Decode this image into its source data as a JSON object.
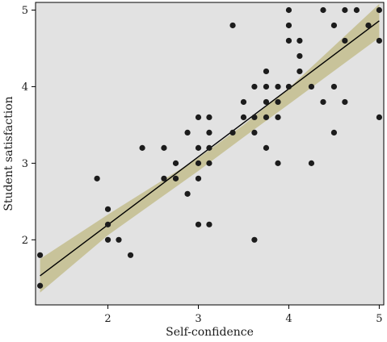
{
  "chart_data": {
    "type": "scatter",
    "title": "",
    "xlabel": "Self-confidence",
    "ylabel": "Student satisfaction",
    "xlim": [
      1.2,
      5.05
    ],
    "ylim": [
      1.15,
      5.1
    ],
    "xticks": [
      2,
      3,
      4,
      5
    ],
    "yticks": [
      2,
      3,
      4,
      5
    ],
    "grid": false,
    "colors": {
      "panel": "#e2e2e2",
      "points": "#1c1c1c",
      "fit_line": "#000000",
      "confidence_band": "#c8c39a"
    },
    "points": [
      [
        1.25,
        1.8
      ],
      [
        1.25,
        1.4
      ],
      [
        1.88,
        2.8
      ],
      [
        2.0,
        2.4
      ],
      [
        2.0,
        2.2
      ],
      [
        2.0,
        2.0
      ],
      [
        2.12,
        2.0
      ],
      [
        2.25,
        1.8
      ],
      [
        2.38,
        3.2
      ],
      [
        2.62,
        3.2
      ],
      [
        2.62,
        2.8
      ],
      [
        2.75,
        3.0
      ],
      [
        2.75,
        2.8
      ],
      [
        2.88,
        3.4
      ],
      [
        2.88,
        2.6
      ],
      [
        3.0,
        3.6
      ],
      [
        3.0,
        3.2
      ],
      [
        3.0,
        3.0
      ],
      [
        3.0,
        2.8
      ],
      [
        3.0,
        2.2
      ],
      [
        3.12,
        3.6
      ],
      [
        3.12,
        3.4
      ],
      [
        3.12,
        3.2
      ],
      [
        3.12,
        3.0
      ],
      [
        3.12,
        2.2
      ],
      [
        3.38,
        4.8
      ],
      [
        3.38,
        3.4
      ],
      [
        3.5,
        3.8
      ],
      [
        3.5,
        3.6
      ],
      [
        3.62,
        4.0
      ],
      [
        3.62,
        3.6
      ],
      [
        3.62,
        3.4
      ],
      [
        3.62,
        2.0
      ],
      [
        3.75,
        4.2
      ],
      [
        3.75,
        4.0
      ],
      [
        3.75,
        3.8
      ],
      [
        3.75,
        3.6
      ],
      [
        3.75,
        3.2
      ],
      [
        3.88,
        4.0
      ],
      [
        3.88,
        3.8
      ],
      [
        3.88,
        3.6
      ],
      [
        3.88,
        3.0
      ],
      [
        4.0,
        5.0
      ],
      [
        4.0,
        4.8
      ],
      [
        4.0,
        4.6
      ],
      [
        4.0,
        4.0
      ],
      [
        4.12,
        4.6
      ],
      [
        4.12,
        4.4
      ],
      [
        4.12,
        4.2
      ],
      [
        4.25,
        4.0
      ],
      [
        4.25,
        3.0
      ],
      [
        4.38,
        5.0
      ],
      [
        4.38,
        3.8
      ],
      [
        4.5,
        4.8
      ],
      [
        4.5,
        4.0
      ],
      [
        4.5,
        3.4
      ],
      [
        4.62,
        5.0
      ],
      [
        4.62,
        4.6
      ],
      [
        4.62,
        3.8
      ],
      [
        4.75,
        5.0
      ],
      [
        4.88,
        4.8
      ],
      [
        5.0,
        5.0
      ],
      [
        5.0,
        4.6
      ],
      [
        5.0,
        3.6
      ]
    ],
    "fit": {
      "x": [
        1.25,
        5.0
      ],
      "y": [
        1.53,
        4.86
      ]
    },
    "confidence_band": {
      "x": [
        1.25,
        2.0,
        3.0,
        3.5,
        4.0,
        5.0
      ],
      "lower": [
        1.31,
        2.06,
        2.9,
        3.34,
        3.77,
        4.64
      ],
      "upper": [
        1.75,
        2.33,
        3.07,
        3.5,
        3.98,
        5.08
      ]
    }
  }
}
